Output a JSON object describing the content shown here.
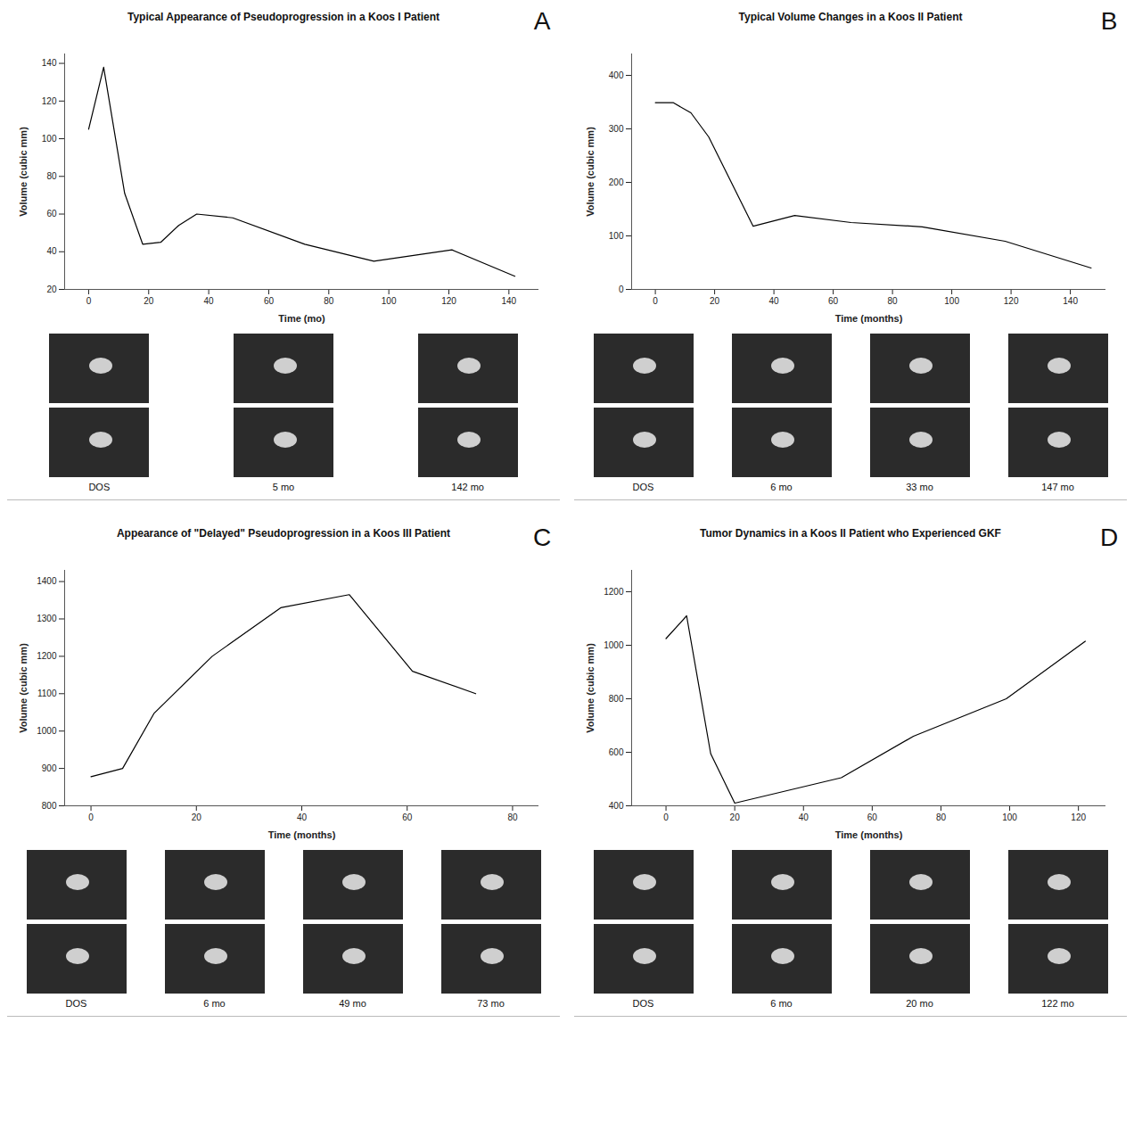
{
  "chart_data": [
    {
      "type": "line",
      "panel_label": "A",
      "title": "Typical Appearance of Pseudoprogression in a Koos I Patient",
      "x_label": "Time (mo)",
      "y_label": "Volume (cubic mm)",
      "color": "#000000",
      "x": [
        0,
        5,
        12,
        18,
        24,
        30,
        36,
        48,
        72,
        95,
        121,
        142
      ],
      "values": [
        105,
        138,
        71,
        44,
        45,
        54,
        60,
        58,
        44,
        35,
        41,
        27
      ],
      "xlim": [
        -8,
        150
      ],
      "xticks": [
        0,
        20,
        40,
        60,
        80,
        100,
        120,
        140
      ],
      "ylim": [
        20,
        145
      ],
      "yticks": [
        20,
        40,
        60,
        80,
        100,
        120,
        140
      ],
      "annotations": [
        "DOS",
        "5 mo",
        "142 mo"
      ]
    },
    {
      "type": "line",
      "panel_label": "B",
      "title": "Typical Volume Changes in a Koos II Patient",
      "x_label": "Time (months)",
      "y_label": "Volume (cubic mm)",
      "color": "#000000",
      "x": [
        0,
        6,
        12,
        18,
        33,
        47,
        66,
        90,
        118,
        147
      ],
      "values": [
        349,
        349,
        330,
        285,
        118,
        138,
        125,
        117,
        90,
        40
      ],
      "xlim": [
        -8,
        152
      ],
      "xticks": [
        0,
        20,
        40,
        60,
        80,
        100,
        120,
        140
      ],
      "ylim": [
        0,
        440
      ],
      "yticks": [
        0,
        100,
        200,
        300,
        400
      ],
      "annotations": [
        "DOS",
        "6 mo",
        "33 mo",
        "147 mo"
      ]
    },
    {
      "type": "line",
      "panel_label": "C",
      "title": "Appearance of \"Delayed\" Pseudoprogression in a Koos III Patient",
      "x_label": "Time (months)",
      "y_label": "Volume (cubic mm)",
      "color": "#000000",
      "x": [
        0,
        6,
        12,
        23,
        36,
        49,
        61,
        73
      ],
      "values": [
        878,
        900,
        1048,
        1200,
        1330,
        1365,
        1160,
        1100
      ],
      "xlim": [
        -5,
        85
      ],
      "xticks": [
        0,
        20,
        40,
        60,
        80
      ],
      "ylim": [
        800,
        1430
      ],
      "yticks": [
        800,
        900,
        1000,
        1100,
        1200,
        1300,
        1400
      ],
      "annotations": [
        "DOS",
        "6 mo",
        "49 mo",
        "73 mo"
      ]
    },
    {
      "type": "line",
      "panel_label": "D",
      "title": "Tumor Dynamics in a Koos II Patient who Experienced GKF",
      "x_label": "Time (months)",
      "y_label": "Volume (cubic mm)",
      "color": "#000000",
      "x": [
        0,
        6,
        13,
        20,
        51,
        72,
        99,
        122
      ],
      "values": [
        1025,
        1110,
        595,
        410,
        505,
        660,
        800,
        1015
      ],
      "xlim": [
        -10,
        128
      ],
      "xticks": [
        0,
        20,
        40,
        60,
        80,
        100,
        120
      ],
      "ylim": [
        400,
        1280
      ],
      "yticks": [
        400,
        600,
        800,
        1000,
        1200
      ],
      "annotations": [
        "DOS",
        "6 mo",
        "20 mo",
        "122 mo"
      ]
    }
  ]
}
